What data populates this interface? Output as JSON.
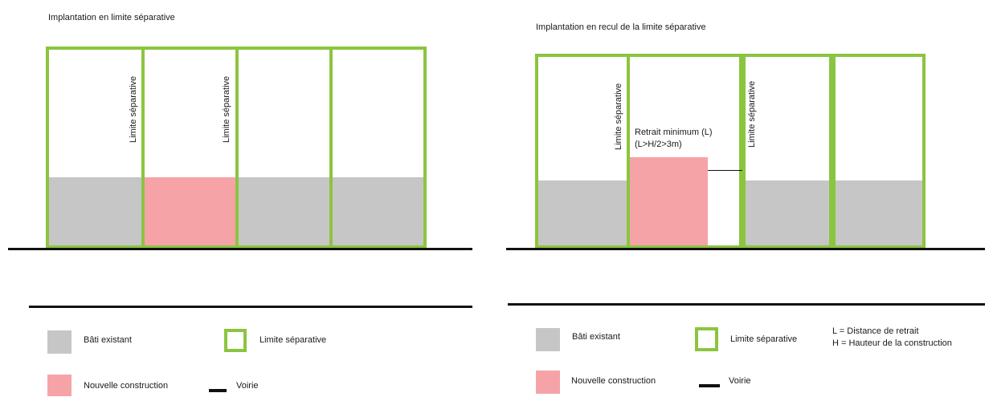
{
  "colors": {
    "existing": "#c6c6c6",
    "new_construction": "#f6a3a8",
    "boundary": "#8bc53f",
    "road": "#111111"
  },
  "left": {
    "title": "Implantation en limite séparative",
    "boundary_label_1": "Limite séparative",
    "boundary_label_2": "Limite séparative",
    "legend": {
      "existing": "Bâti existant",
      "boundary": "Limite séparative",
      "new_construction": "Nouvelle construction",
      "road": "Voirie"
    }
  },
  "right": {
    "title": "Implantation en recul de la limite séparative",
    "boundary_label_1": "Limite séparative",
    "boundary_label_2": "Limite séparative",
    "setback_label_1": "Retrait minimum (L)",
    "setback_label_2": "(L>H/2>3m)",
    "legend": {
      "existing": "Bâti existant",
      "boundary": "Limite séparative",
      "new_construction": "Nouvelle construction",
      "road": "Voirie",
      "definition_l": "L = Distance de retrait",
      "definition_h": "H = Hauteur de la construction"
    }
  }
}
